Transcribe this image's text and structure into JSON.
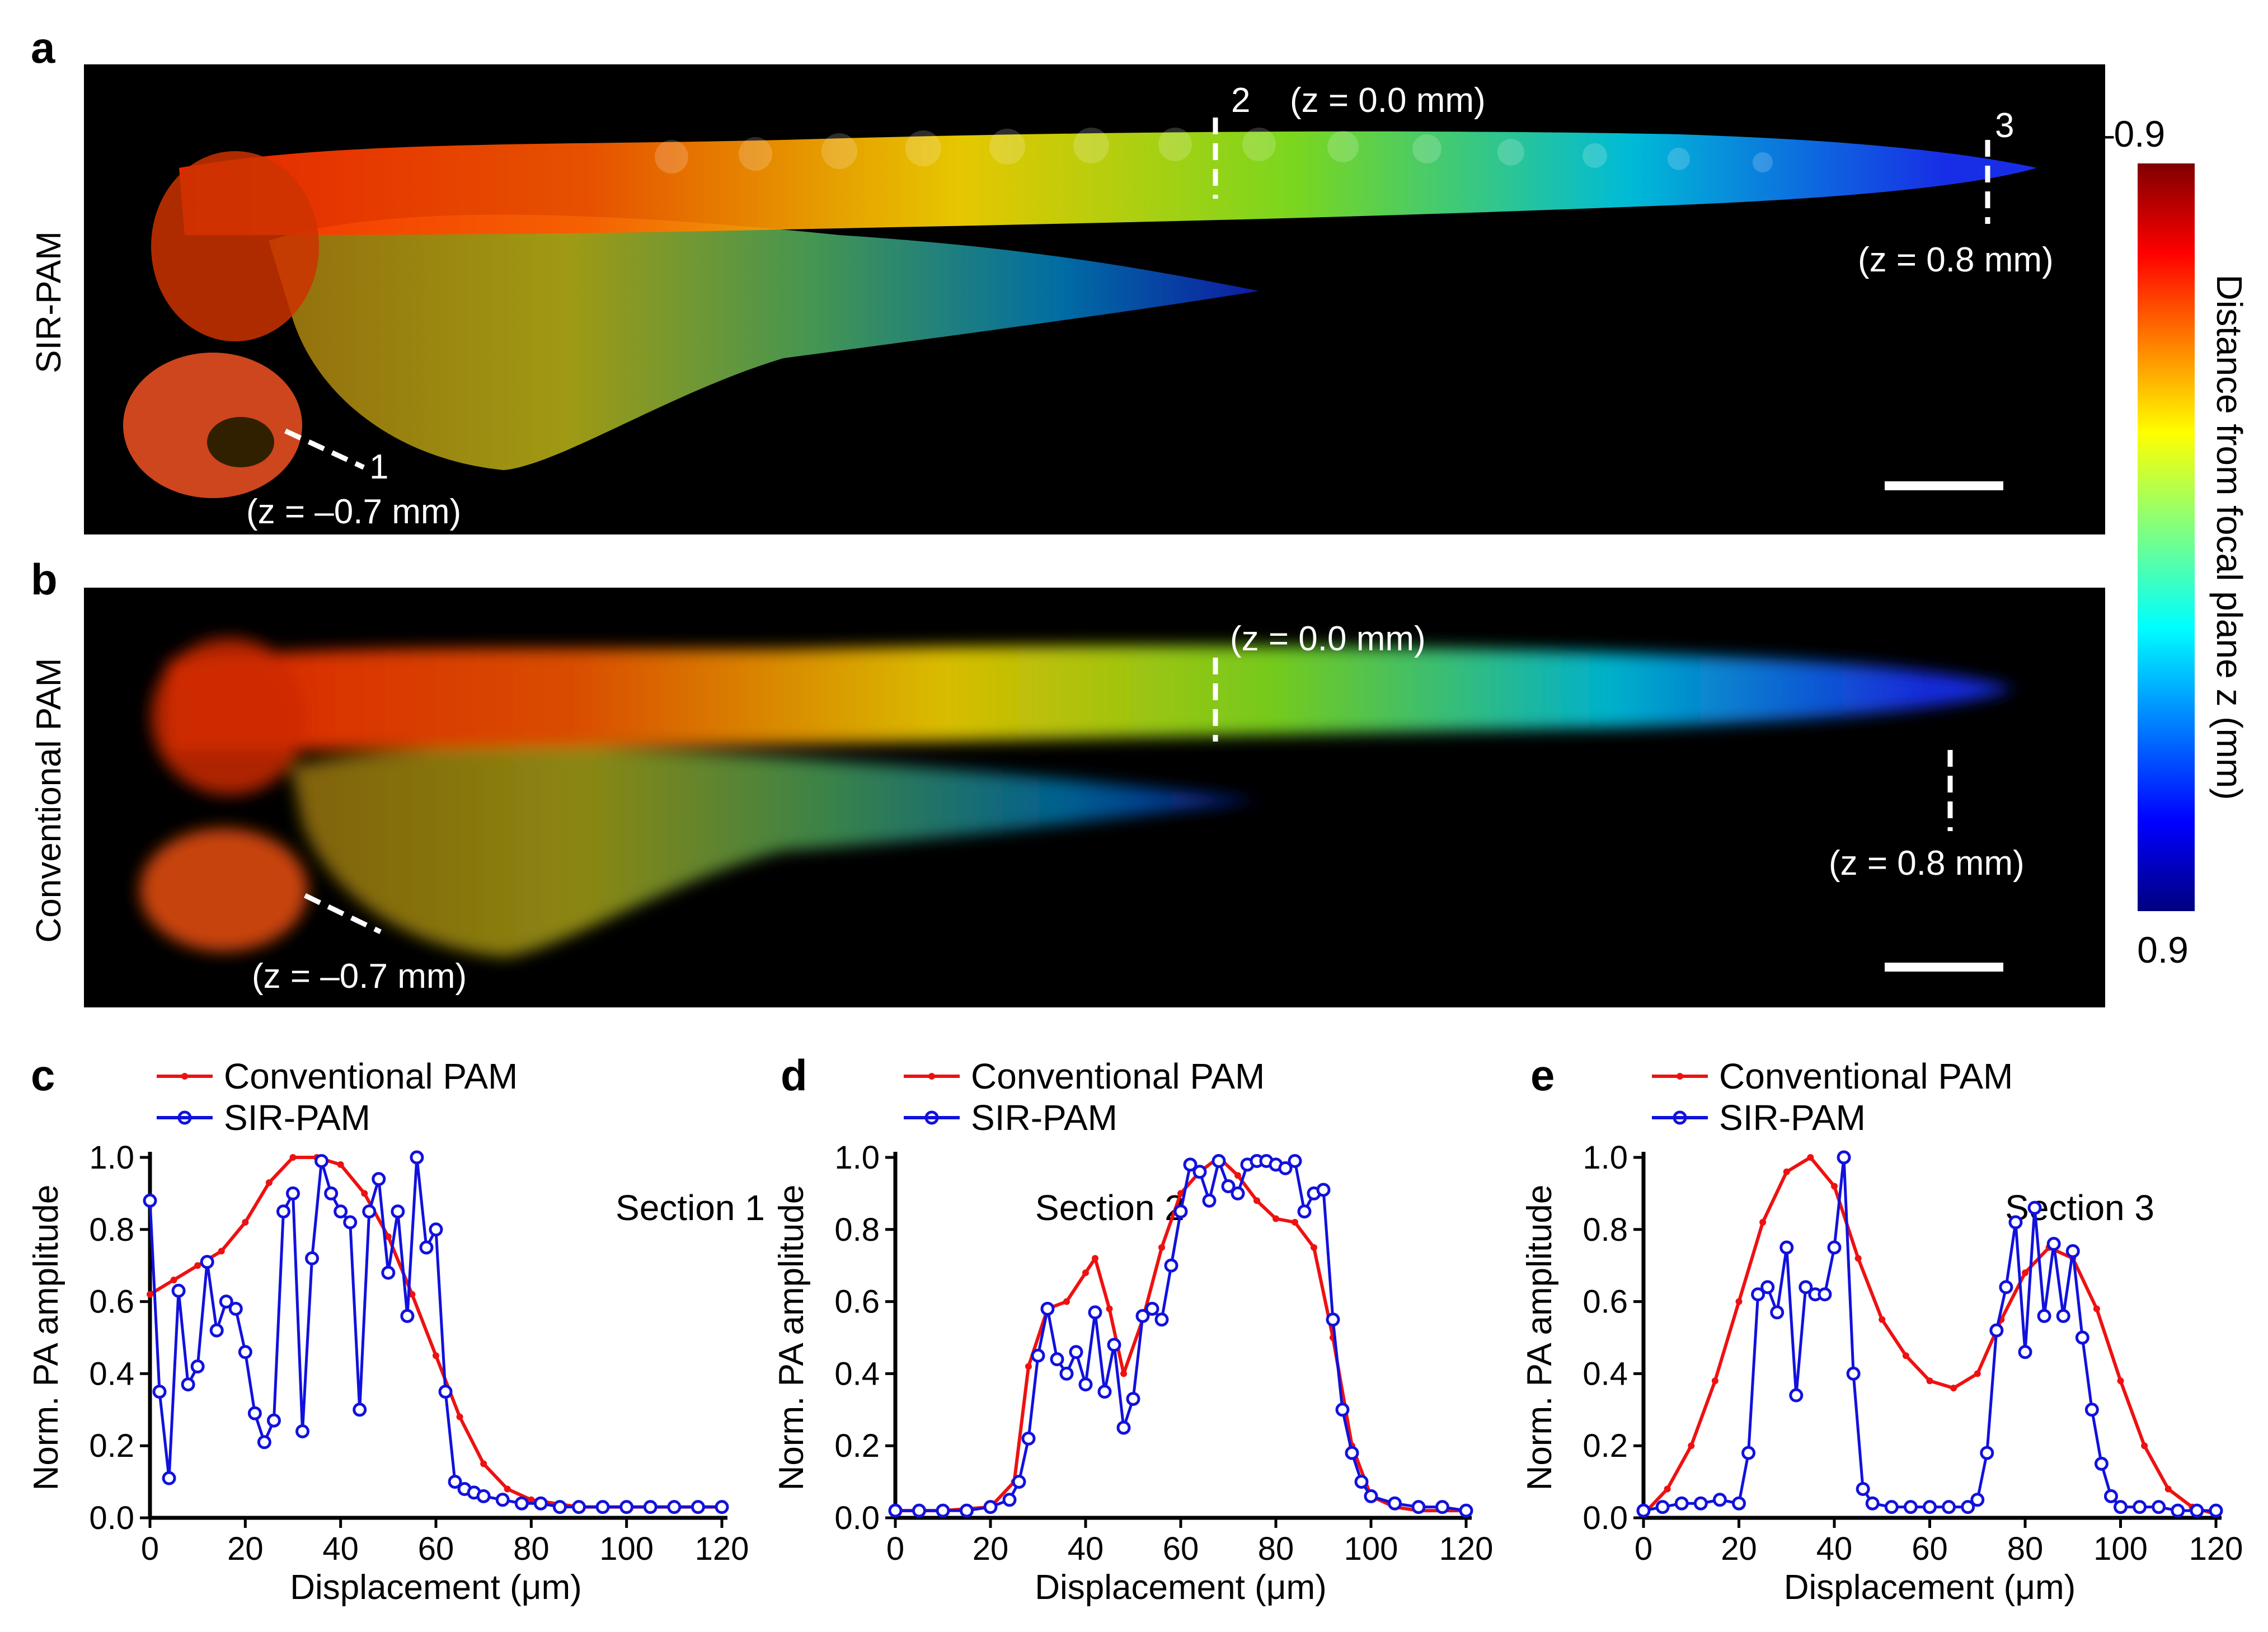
{
  "panels": {
    "a": {
      "label": "a",
      "ylabel": "SIR-PAM",
      "annotations": {
        "num1": "1",
        "num2": "2",
        "num3": "3",
        "z1": "(z = –0.7 mm)",
        "z2": "(z = 0.0 mm)",
        "z3": "(z = 0.8 mm)"
      }
    },
    "b": {
      "label": "b",
      "ylabel": "Conventional PAM",
      "annotations": {
        "z1": "(z = –0.7 mm)",
        "z2": "(z = 0.0 mm)",
        "z3": "(z = 0.8 mm)"
      }
    }
  },
  "colorbar": {
    "top_label": "–0.9",
    "bottom_label": "0.9",
    "title": "Distance from focal plane z (mm)",
    "colormap": "jet",
    "colors": [
      "#7f0000",
      "#ff0000",
      "#ffff00",
      "#00ffff",
      "#0000ff",
      "#00007f"
    ]
  },
  "legend": {
    "conventional": "Conventional PAM",
    "sir": "SIR-PAM"
  },
  "colors": {
    "conventional": "#ee1111",
    "sir": "#1111dd",
    "image_background": "#000000"
  },
  "chart_data": [
    {
      "panel_label": "c",
      "type": "line",
      "annotation": "Section 1",
      "xlabel": "Displacement (μm)",
      "ylabel": "Norm. PA amplitude",
      "xlim": [
        0,
        120
      ],
      "ylim": [
        0,
        1.0
      ],
      "xticks": [
        "0",
        "20",
        "40",
        "60",
        "80",
        "100",
        "120"
      ],
      "yticks": [
        "0.0",
        "0.2",
        "0.4",
        "0.6",
        "0.8",
        "1.0"
      ],
      "series": [
        {
          "name": "Conventional PAM",
          "x": [
            0,
            5,
            10,
            15,
            20,
            25,
            30,
            35,
            40,
            45,
            50,
            55,
            60,
            65,
            70,
            75,
            80,
            90,
            100,
            110,
            120
          ],
          "y": [
            0.62,
            0.66,
            0.7,
            0.74,
            0.82,
            0.93,
            1.0,
            1.0,
            0.98,
            0.9,
            0.78,
            0.62,
            0.45,
            0.28,
            0.15,
            0.08,
            0.05,
            0.03,
            0.03,
            0.03,
            0.03
          ]
        },
        {
          "name": "SIR-PAM",
          "x": [
            0,
            2,
            4,
            6,
            8,
            10,
            12,
            14,
            16,
            18,
            20,
            22,
            24,
            26,
            28,
            30,
            32,
            34,
            36,
            38,
            40,
            42,
            44,
            46,
            48,
            50,
            52,
            54,
            56,
            58,
            60,
            62,
            64,
            66,
            68,
            70,
            74,
            78,
            82,
            86,
            90,
            95,
            100,
            105,
            110,
            115,
            120
          ],
          "y": [
            0.88,
            0.35,
            0.11,
            0.63,
            0.37,
            0.42,
            0.71,
            0.52,
            0.6,
            0.58,
            0.46,
            0.29,
            0.21,
            0.27,
            0.85,
            0.9,
            0.24,
            0.72,
            0.99,
            0.9,
            0.85,
            0.82,
            0.3,
            0.85,
            0.94,
            0.68,
            0.85,
            0.56,
            1.0,
            0.75,
            0.8,
            0.35,
            0.1,
            0.08,
            0.07,
            0.06,
            0.05,
            0.04,
            0.04,
            0.03,
            0.03,
            0.03,
            0.03,
            0.03,
            0.03,
            0.03,
            0.03
          ]
        }
      ]
    },
    {
      "panel_label": "d",
      "type": "line",
      "annotation": "Section 2",
      "xlabel": "Displacement (μm)",
      "ylabel": "Norm. PA amplitude",
      "xlim": [
        0,
        120
      ],
      "ylim": [
        0,
        1.0
      ],
      "xticks": [
        "0",
        "20",
        "40",
        "60",
        "80",
        "100",
        "120"
      ],
      "yticks": [
        "0.0",
        "0.2",
        "0.4",
        "0.6",
        "0.8",
        "1.0"
      ],
      "series": [
        {
          "name": "Conventional PAM",
          "x": [
            0,
            10,
            20,
            25,
            28,
            32,
            36,
            40,
            42,
            45,
            48,
            52,
            56,
            60,
            64,
            68,
            72,
            76,
            80,
            84,
            88,
            92,
            96,
            100,
            105,
            110,
            120
          ],
          "y": [
            0.02,
            0.02,
            0.03,
            0.1,
            0.42,
            0.58,
            0.6,
            0.68,
            0.72,
            0.58,
            0.4,
            0.55,
            0.75,
            0.9,
            0.96,
            1.0,
            0.95,
            0.88,
            0.83,
            0.82,
            0.75,
            0.5,
            0.2,
            0.06,
            0.03,
            0.02,
            0.02
          ]
        },
        {
          "name": "SIR-PAM",
          "x": [
            0,
            5,
            10,
            15,
            20,
            24,
            26,
            28,
            30,
            32,
            34,
            36,
            38,
            40,
            42,
            44,
            46,
            48,
            50,
            52,
            54,
            56,
            58,
            60,
            62,
            64,
            66,
            68,
            70,
            72,
            74,
            76,
            78,
            80,
            82,
            84,
            86,
            88,
            90,
            92,
            94,
            96,
            98,
            100,
            105,
            110,
            115,
            120
          ],
          "y": [
            0.02,
            0.02,
            0.02,
            0.02,
            0.03,
            0.05,
            0.1,
            0.22,
            0.45,
            0.58,
            0.44,
            0.4,
            0.46,
            0.37,
            0.57,
            0.35,
            0.48,
            0.25,
            0.33,
            0.56,
            0.58,
            0.55,
            0.7,
            0.85,
            0.98,
            0.96,
            0.88,
            0.99,
            0.92,
            0.9,
            0.98,
            0.99,
            0.99,
            0.98,
            0.97,
            0.99,
            0.85,
            0.9,
            0.91,
            0.55,
            0.3,
            0.18,
            0.1,
            0.06,
            0.04,
            0.03,
            0.03,
            0.02
          ]
        }
      ]
    },
    {
      "panel_label": "e",
      "type": "line",
      "annotation": "Section 3",
      "xlabel": "Displacement (μm)",
      "ylabel": "Norm. PA amplitude",
      "xlim": [
        0,
        120
      ],
      "ylim": [
        0,
        1.0
      ],
      "xticks": [
        "0",
        "20",
        "40",
        "60",
        "80",
        "100",
        "120"
      ],
      "yticks": [
        "0.0",
        "0.2",
        "0.4",
        "0.6",
        "0.8",
        "1.0"
      ],
      "series": [
        {
          "name": "Conventional PAM",
          "x": [
            0,
            5,
            10,
            15,
            20,
            25,
            30,
            35,
            40,
            45,
            50,
            55,
            60,
            65,
            70,
            75,
            80,
            85,
            90,
            95,
            100,
            105,
            110,
            115,
            120
          ],
          "y": [
            0.01,
            0.08,
            0.2,
            0.38,
            0.6,
            0.82,
            0.96,
            1.0,
            0.92,
            0.72,
            0.55,
            0.45,
            0.38,
            0.36,
            0.4,
            0.55,
            0.68,
            0.75,
            0.72,
            0.58,
            0.38,
            0.2,
            0.08,
            0.03,
            0.01
          ]
        },
        {
          "name": "SIR-PAM",
          "x": [
            0,
            4,
            8,
            12,
            16,
            20,
            22,
            24,
            26,
            28,
            30,
            32,
            34,
            36,
            38,
            40,
            42,
            44,
            46,
            48,
            52,
            56,
            60,
            64,
            68,
            70,
            72,
            74,
            76,
            78,
            80,
            82,
            84,
            86,
            88,
            90,
            92,
            94,
            96,
            98,
            100,
            104,
            108,
            112,
            116,
            120
          ],
          "y": [
            0.02,
            0.03,
            0.04,
            0.04,
            0.05,
            0.04,
            0.18,
            0.62,
            0.64,
            0.57,
            0.75,
            0.34,
            0.64,
            0.62,
            0.62,
            0.75,
            1.0,
            0.4,
            0.08,
            0.04,
            0.03,
            0.03,
            0.03,
            0.03,
            0.03,
            0.05,
            0.18,
            0.52,
            0.64,
            0.82,
            0.46,
            0.86,
            0.56,
            0.76,
            0.56,
            0.74,
            0.5,
            0.3,
            0.15,
            0.06,
            0.03,
            0.03,
            0.03,
            0.02,
            0.02,
            0.02
          ]
        }
      ]
    }
  ]
}
